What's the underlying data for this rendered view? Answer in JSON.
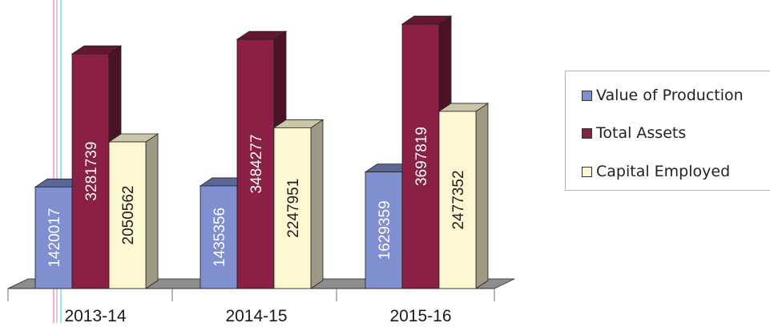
{
  "chart_data": {
    "type": "bar",
    "categories": [
      "2013-14",
      "2014-15",
      "2015-16"
    ],
    "series": [
      {
        "name": "Value of Production",
        "values": [
          1420017,
          1435356,
          1629359
        ],
        "color": "#7f8fd0"
      },
      {
        "name": "Total Assets",
        "values": [
          3281739,
          3484277,
          3697819
        ],
        "color": "#8a2046"
      },
      {
        "name": "Capital Employed",
        "values": [
          2050562,
          2247951,
          2477352
        ],
        "color": "#fdf7d2"
      }
    ],
    "ylim": [
      0,
      3900000
    ],
    "grid": false,
    "legend": "right",
    "style": "3d-clustered-column",
    "data_labels": "rotated-inside-bars"
  }
}
